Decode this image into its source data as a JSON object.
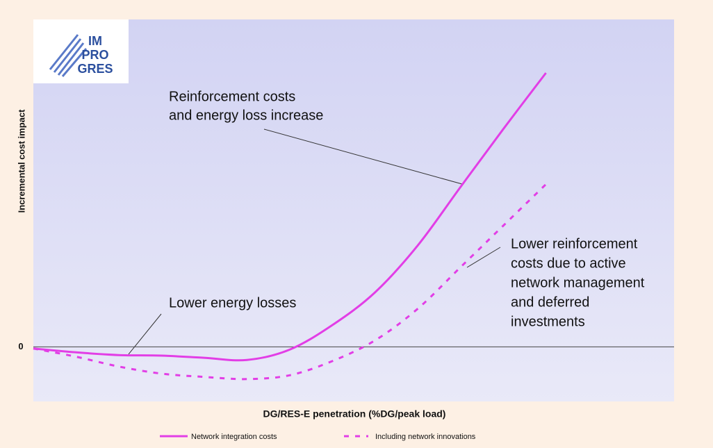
{
  "chart_data": {
    "type": "line",
    "logo": [
      "IM",
      "PRO",
      "GRES"
    ],
    "y_label": "Incremental cost impact",
    "x_label": "DG/RES-E penetration (%DG/peak load)",
    "categories": [
      null,
      null,
      null,
      null,
      null,
      null,
      null,
      null,
      null,
      null,
      null,
      null,
      null,
      null,
      null,
      null
    ],
    "ylim": [
      -1,
      6
    ],
    "yticks": [
      0
    ],
    "series": [
      {
        "name": "Network integration costs",
        "color": "#e23ee6",
        "dash": false,
        "values": [
          -0.03,
          -0.1,
          -0.15,
          -0.16,
          -0.2,
          -0.24,
          -0.05,
          0.4,
          1.0,
          1.86,
          2.93,
          3.99,
          5.02,
          null,
          null,
          null
        ]
      },
      {
        "name": "Including network innovations",
        "color": "#e23ee6",
        "dash": true,
        "values": [
          -0.03,
          -0.18,
          -0.36,
          -0.49,
          -0.55,
          -0.59,
          -0.52,
          -0.26,
          0.12,
          0.7,
          1.46,
          2.22,
          2.98,
          null,
          null,
          null
        ]
      }
    ],
    "annotations": [
      {
        "lines": [
          "Reinforcement costs",
          "and energy loss increase"
        ]
      },
      {
        "lines": [
          "Lower energy losses"
        ]
      },
      {
        "lines": [
          "Lower reinforcement",
          "costs due to active",
          "network management",
          "and deferred",
          "investments"
        ]
      }
    ]
  }
}
